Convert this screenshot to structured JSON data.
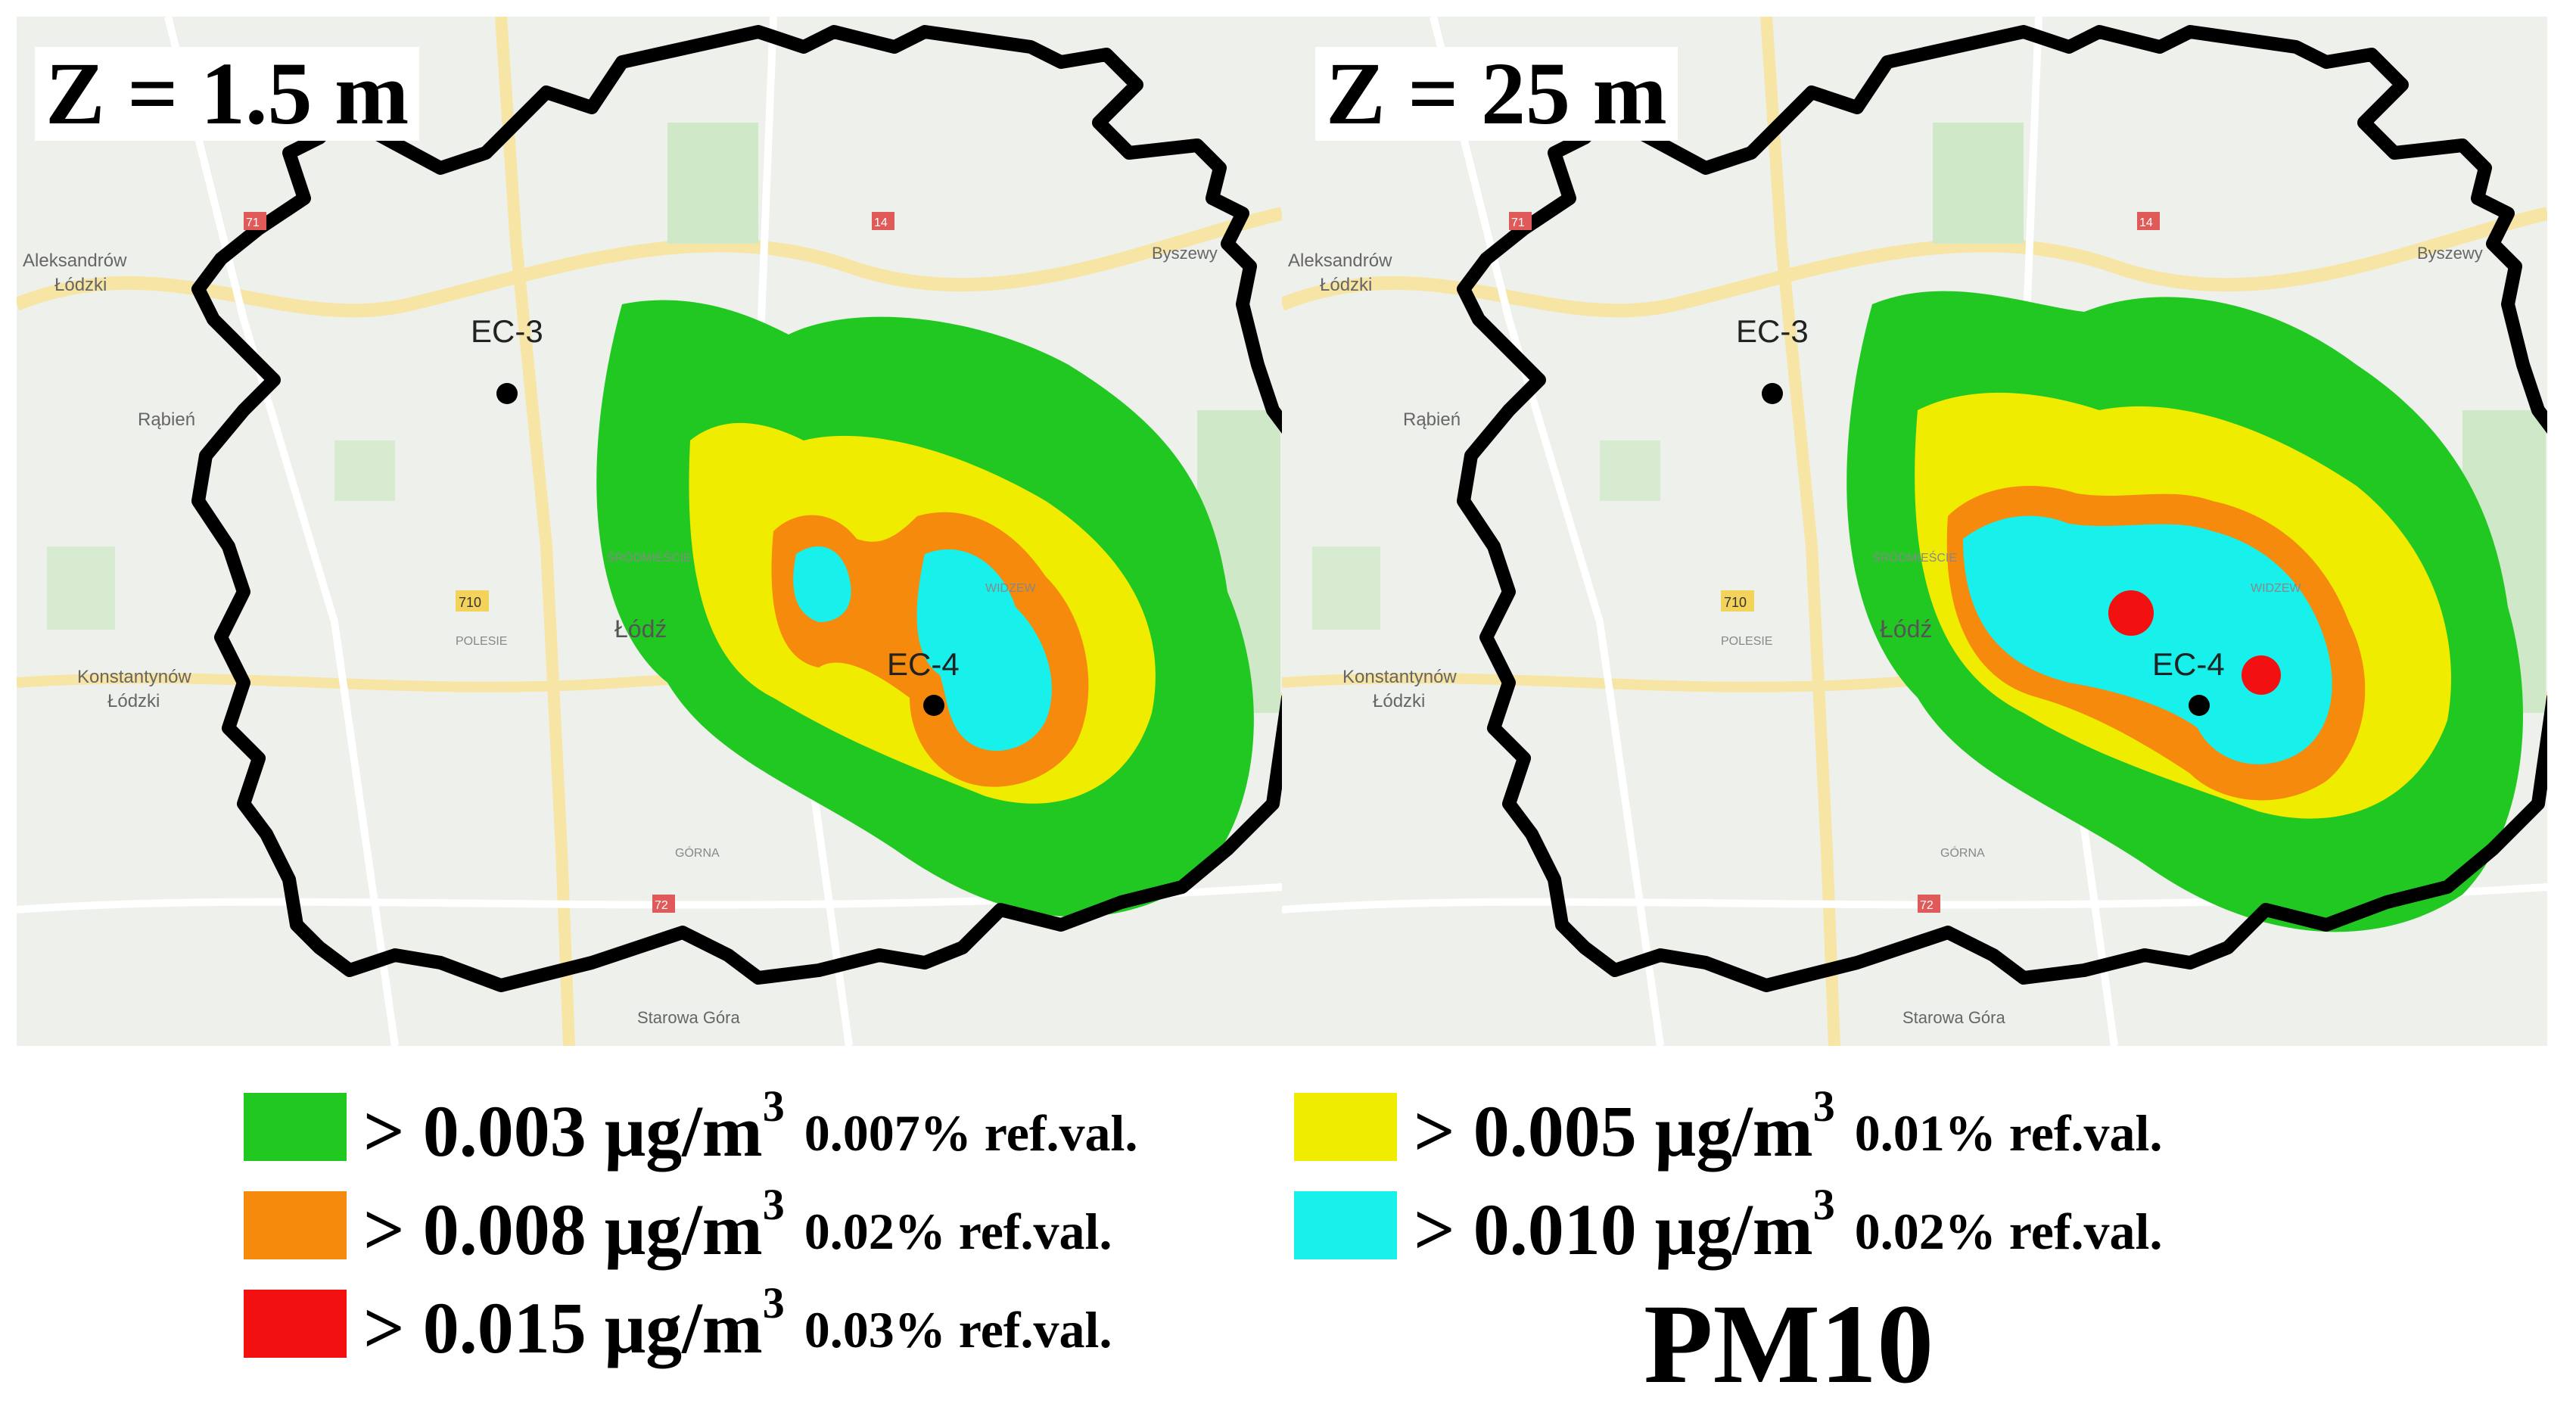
{
  "panels": [
    {
      "height_label": "Z = 1.5 m",
      "has_red_hotspots": false
    },
    {
      "height_label": "Z = 25 m",
      "has_red_hotspots": true
    }
  ],
  "map_labels": {
    "ec3": "EC-3",
    "ec4": "EC-4",
    "city": "Łódź",
    "aleksandrow": [
      "Aleksandrów",
      "Łódzki"
    ],
    "konstantynow": [
      "Konstantynów",
      "Łódzki"
    ],
    "rabien": "Rąbień",
    "starowa_gora": "Starowa Góra",
    "bedzelin": "Byszewy",
    "srodmiescie": "ŚRÓDMIEŚCIE",
    "widzew": "WIDZEW",
    "polesie": "POLESIE",
    "gorna": "GÓRNA",
    "road_710": "710",
    "road_71": "71",
    "road_14": "14",
    "road_72": "72"
  },
  "legend": [
    {
      "color": "#22c822",
      "concentration": "> 0.003 μg/m",
      "unit_exp": "3",
      "ref_value": "0.007% ref.val."
    },
    {
      "color": "#f0ec00",
      "concentration": "> 0.005 μg/m",
      "unit_exp": "3",
      "ref_value": "0.01% ref.val."
    },
    {
      "color": "#f58a0c",
      "concentration": "> 0.008 μg/m",
      "unit_exp": "3",
      "ref_value": "0.02% ref.val."
    },
    {
      "color": "#18f0ec",
      "concentration": "> 0.010 μg/m",
      "unit_exp": "3",
      "ref_value": "0.02% ref.val."
    },
    {
      "color": "#f21010",
      "concentration": "> 0.015 μg/m",
      "unit_exp": "3",
      "ref_value": "0.03% ref.val."
    }
  ],
  "pollutant": "PM10"
}
